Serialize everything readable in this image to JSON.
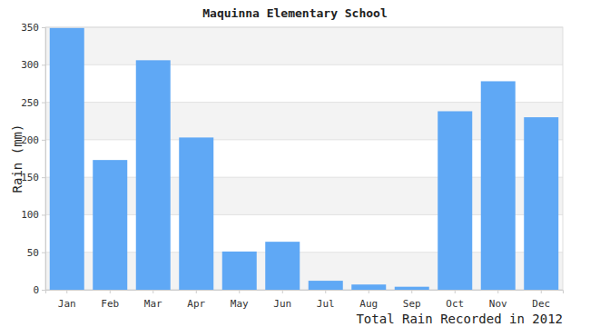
{
  "chart_data": {
    "type": "bar",
    "title": "Maquinna Elementary School",
    "x_label": "Total Rain Recorded in 2012",
    "y_label": "Rain (mm)",
    "categories": [
      "Jan",
      "Feb",
      "Mar",
      "Apr",
      "May",
      "Jun",
      "Jul",
      "Aug",
      "Sep",
      "Oct",
      "Nov",
      "Dec"
    ],
    "values": [
      349,
      173,
      306,
      203,
      51,
      64,
      12,
      7,
      4,
      238,
      278,
      230
    ],
    "color": "#5fa8f5",
    "ylim": [
      0,
      350
    ],
    "yticks": [
      0,
      50,
      100,
      150,
      200,
      250,
      300,
      350
    ],
    "grid": true
  }
}
